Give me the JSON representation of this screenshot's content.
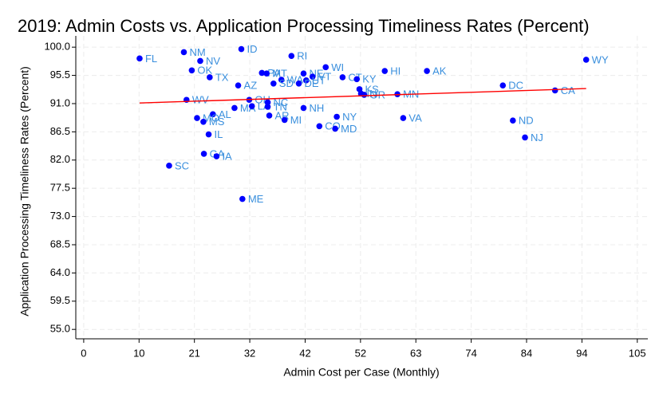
{
  "chart_data": {
    "type": "scatter",
    "title": "2019: Admin Costs vs. Application Processing Timeliness Rates (Percent)",
    "x_label": "Admin Cost per Case (Monthly)",
    "y_label": "Application Processing Timeliness Rates (Percent)",
    "point_labels": [
      "FL",
      "NM",
      "NV",
      "OK",
      "ID",
      "TX",
      "RI",
      "WI",
      "HI",
      "AK",
      "WY",
      "PA",
      "MT",
      "WA",
      "SD",
      "NE",
      "VT",
      "UT",
      "DE",
      "CT",
      "KY",
      "KS",
      "IN",
      "OR",
      "MN",
      "DC",
      "CA",
      "AZ",
      "WV",
      "OH",
      "MA",
      "LA",
      "NC",
      "TN",
      "NH",
      "AR",
      "MI",
      "NY",
      "VA",
      "ND",
      "CO",
      "MD",
      "NJ",
      "AL",
      "MO",
      "MS",
      "IL",
      "GA",
      "IA",
      "SC",
      "ME"
    ],
    "x": [
      10.6,
      19.0,
      22.1,
      20.5,
      29.9,
      23.9,
      39.4,
      45.9,
      57.1,
      65.1,
      95.3,
      33.8,
      34.7,
      37.5,
      36.0,
      41.7,
      43.4,
      42.2,
      40.8,
      49.1,
      51.8,
      52.3,
      52.6,
      53.2,
      59.5,
      79.5,
      89.4,
      29.3,
      19.5,
      31.4,
      28.6,
      31.9,
      34.9,
      34.9,
      41.7,
      35.2,
      38.1,
      48.0,
      60.6,
      81.4,
      44.7,
      47.7,
      83.7,
      24.5,
      21.5,
      22.7,
      23.7,
      22.8,
      25.2,
      16.2,
      30.1
    ],
    "values": [
      98.2,
      99.2,
      97.8,
      96.3,
      99.7,
      95.2,
      98.6,
      96.8,
      96.2,
      96.2,
      98.0,
      95.9,
      95.8,
      94.8,
      94.2,
      95.8,
      95.3,
      94.7,
      94.2,
      95.2,
      94.9,
      93.3,
      92.6,
      92.4,
      92.5,
      93.9,
      93.1,
      93.9,
      91.6,
      91.6,
      90.3,
      90.6,
      91.2,
      90.5,
      90.3,
      89.1,
      88.4,
      88.9,
      88.7,
      88.3,
      87.4,
      87.0,
      85.6,
      89.3,
      88.7,
      88.1,
      86.1,
      83.0,
      82.6,
      81.1,
      75.8
    ],
    "point_color": "#0000ff",
    "label_color": "#3a8fdd",
    "fit_line": {
      "x": [
        10.6,
        95.3
      ],
      "values": [
        91.1,
        93.4
      ],
      "color": "#ff0000"
    },
    "xlim": [
      -1.5,
      107
    ],
    "ylim": [
      53.5,
      101.8
    ],
    "xticks": [
      0,
      {
        "value": 10.5,
        "label": "10"
      },
      21,
      {
        "value": 31.5,
        "label": "32"
      },
      42,
      {
        "value": 52.5,
        "label": "52"
      },
      63,
      {
        "value": 73.5,
        "label": "74"
      },
      84,
      {
        "value": 94.5,
        "label": "94"
      },
      105
    ],
    "yticks": [
      {
        "value": 55,
        "label": "55.0"
      },
      {
        "value": 59.5,
        "label": "59.5"
      },
      {
        "value": 64,
        "label": "64.0"
      },
      {
        "value": 68.5,
        "label": "68.5"
      },
      {
        "value": 73,
        "label": "73.0"
      },
      {
        "value": 77.5,
        "label": "77.5"
      },
      {
        "value": 82,
        "label": "82.0"
      },
      {
        "value": 86.5,
        "label": "86.5"
      },
      {
        "value": 91,
        "label": "91.0"
      },
      {
        "value": 95.5,
        "label": "95.5"
      },
      {
        "value": 100,
        "label": "100.0"
      }
    ],
    "grid": true
  }
}
